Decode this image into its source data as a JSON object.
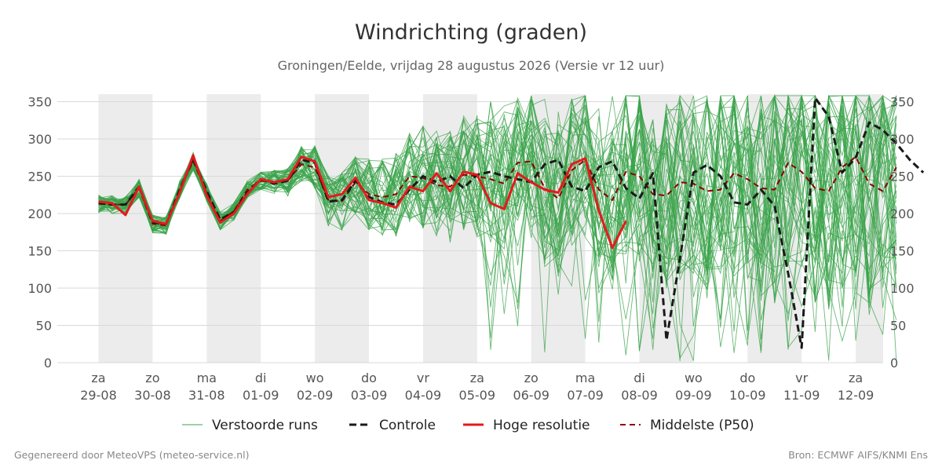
{
  "chart_data": {
    "type": "line",
    "title": "Windrichting (graden)",
    "subtitle": "Groningen/Eelde, vrijdag 28 augustus 2026 (Versie vr 12 uur)",
    "ylim": [
      0,
      360
    ],
    "y_ticks": [
      0,
      50,
      100,
      150,
      200,
      250,
      300,
      350
    ],
    "x_label_days": [
      "za",
      "zo",
      "ma",
      "di",
      "wo",
      "do",
      "vr",
      "za",
      "zo",
      "ma",
      "di",
      "wo",
      "do",
      "vr",
      "za"
    ],
    "x_label_dates": [
      "29-08",
      "30-08",
      "31-08",
      "01-09",
      "02-09",
      "03-09",
      "04-09",
      "05-09",
      "06-09",
      "07-09",
      "08-09",
      "09-09",
      "10-09",
      "11-09",
      "12-09"
    ],
    "weekend_shading": true,
    "grid": true,
    "legend_position": "bottom",
    "colors": {
      "ensemble": "#3aa34a",
      "controle": "#1a1a1a",
      "hoge_resolutie": "#e41a1c",
      "mediaan": "#8b0000",
      "shade": "#ececec",
      "grid": "#d9d9d9"
    },
    "x_step_hours": 6,
    "series": [
      {
        "name": "Controle",
        "style": "dashed",
        "values": [
          214,
          212,
          212,
          236,
          188,
          186,
          232,
          274,
          230,
          192,
          202,
          228,
          246,
          240,
          244,
          272,
          268,
          216,
          218,
          244,
          222,
          215,
          212,
          232,
          250,
          242,
          250,
          234,
          252,
          256,
          250,
          246,
          242,
          266,
          272,
          236,
          230,
          262,
          270,
          234,
          220,
          254,
          30,
          140,
          255,
          265,
          250,
          215,
          212,
          232,
          210,
          120,
          20,
          355,
          330,
          255,
          275,
          322,
          312,
          294,
          272,
          255
        ]
      },
      {
        "name": "Hoge resolutie",
        "style": "solid",
        "values": [
          216,
          214,
          198,
          236,
          190,
          186,
          228,
          278,
          224,
          188,
          200,
          226,
          246,
          242,
          246,
          276,
          270,
          222,
          226,
          248,
          218,
          214,
          208,
          236,
          230,
          254,
          230,
          256,
          252,
          214,
          206,
          254,
          242,
          232,
          228,
          266,
          274,
          204,
          154,
          190
        ]
      },
      {
        "name": "Middelste (P50)",
        "style": "dashed",
        "values": [
          213,
          212,
          212,
          234,
          186,
          184,
          232,
          270,
          228,
          190,
          203,
          232,
          244,
          242,
          244,
          266,
          262,
          218,
          216,
          242,
          226,
          222,
          226,
          250,
          248,
          238,
          236,
          252,
          250,
          246,
          240,
          268,
          270,
          234,
          220,
          258,
          272,
          232,
          218,
          256,
          250,
          226,
          224,
          242,
          240,
          230,
          232,
          254,
          246,
          234,
          232,
          268,
          256,
          234,
          230,
          262,
          276,
          240,
          230,
          262
        ]
      },
      {
        "name": "Verstoorde runs",
        "style": "ensemble",
        "values": []
      }
    ],
    "ensemble_spread": {
      "count": 50,
      "note_none": ""
    }
  },
  "legend": {
    "ensemble": "Verstoorde runs",
    "controle": "Controle",
    "hoge_resolutie": "Hoge resolutie",
    "mediaan": "Middelste (P50)"
  },
  "footer": {
    "left": "Gegenereerd door MeteoVPS (meteo-service.nl)",
    "right": "Bron: ECMWF AIFS/KNMI Ens"
  }
}
